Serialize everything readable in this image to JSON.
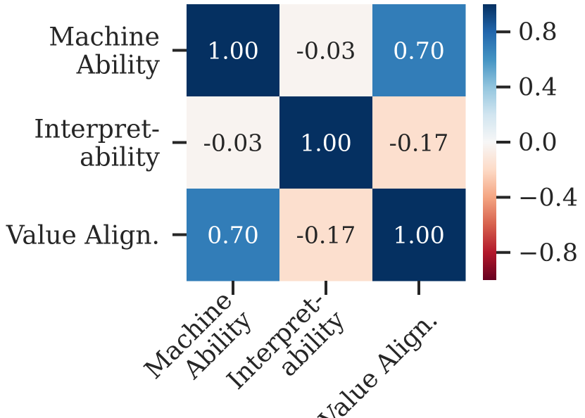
{
  "chart_data": {
    "type": "heatmap",
    "title": "",
    "xlabel": "",
    "ylabel": "",
    "row_labels": [
      [
        "Machine",
        "Ability"
      ],
      [
        "Interpret-",
        "ability"
      ],
      [
        "Value Align."
      ]
    ],
    "col_labels": [
      [
        "Machine",
        "Ability"
      ],
      [
        "Interpret-",
        "ability"
      ],
      [
        "Value Align."
      ]
    ],
    "values": [
      [
        1.0,
        -0.03,
        0.7
      ],
      [
        -0.03,
        1.0,
        -0.17
      ],
      [
        0.7,
        -0.17,
        1.0
      ]
    ],
    "value_format": "2 decimals",
    "colormap": "RdBu",
    "vmin": -1,
    "vmax": 1,
    "colorbar": {
      "ticks": [
        0.8,
        0.4,
        0.0,
        -0.4,
        -0.8
      ],
      "tick_labels": [
        "0.8",
        "0.4",
        "0.0",
        "−0.4",
        "−0.8"
      ]
    },
    "grid": false,
    "legend": "colorbar-right"
  }
}
